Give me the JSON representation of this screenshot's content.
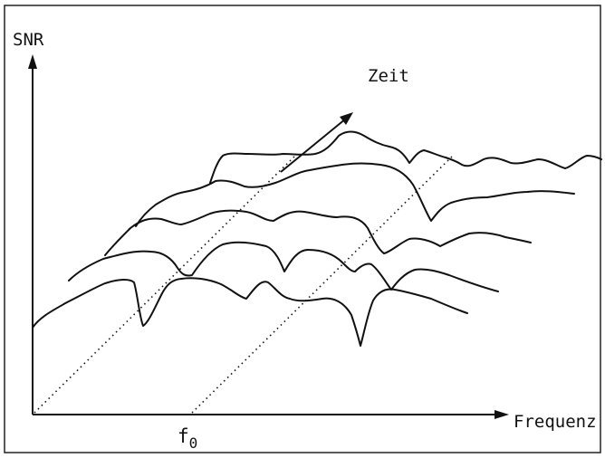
{
  "chart_data": {
    "type": "line",
    "title": "",
    "ylabel": "SNR",
    "xlabel": "Frequenz",
    "depth_label": "Zeit",
    "x_tick_label": "f",
    "x_tick_subscript": "0",
    "grid": false,
    "legend": "none"
  }
}
